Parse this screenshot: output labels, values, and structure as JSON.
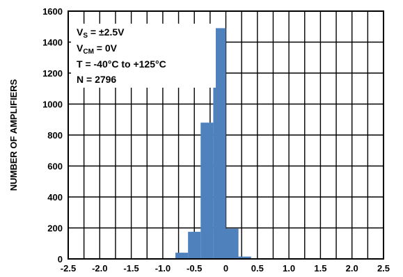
{
  "chart_data": {
    "type": "bar",
    "title": "",
    "xlabel": "",
    "ylabel": "NUMBER OF AMPLIFIERS",
    "xlim": [
      -2.5,
      2.5
    ],
    "ylim": [
      0,
      1600
    ],
    "grid": true,
    "bar_color": "#4f81bd",
    "x_ticks": [
      "-2.5",
      "-2.0",
      "-1.5",
      "-1.0",
      "-0.5",
      "0",
      "0.5",
      "1.0",
      "1.5",
      "2.0",
      "2.5"
    ],
    "y_ticks": [
      "0",
      "200",
      "400",
      "600",
      "800",
      "1000",
      "1200",
      "1400",
      "1600"
    ],
    "bins": [
      {
        "start": -1.0,
        "end": -0.8,
        "value": 5
      },
      {
        "start": -0.8,
        "end": -0.6,
        "value": 40
      },
      {
        "start": -0.6,
        "end": -0.4,
        "value": 175
      },
      {
        "start": -0.4,
        "end": -0.2,
        "value": 880
      },
      {
        "start": -0.2,
        "end": 0.0,
        "value": 1490
      },
      {
        "start": 0.0,
        "end": 0.2,
        "value": 195
      },
      {
        "start": 0.2,
        "end": 0.4,
        "value": 15
      }
    ],
    "annotation": {
      "line1_main": "V",
      "line1_sub": "S",
      "line1_rest": " = ±2.5V",
      "line2_main": "V",
      "line2_sub": "CM",
      "line2_rest": " = 0V",
      "line3": "T = -40°C to +125°C",
      "line4": "N = 2796"
    }
  }
}
